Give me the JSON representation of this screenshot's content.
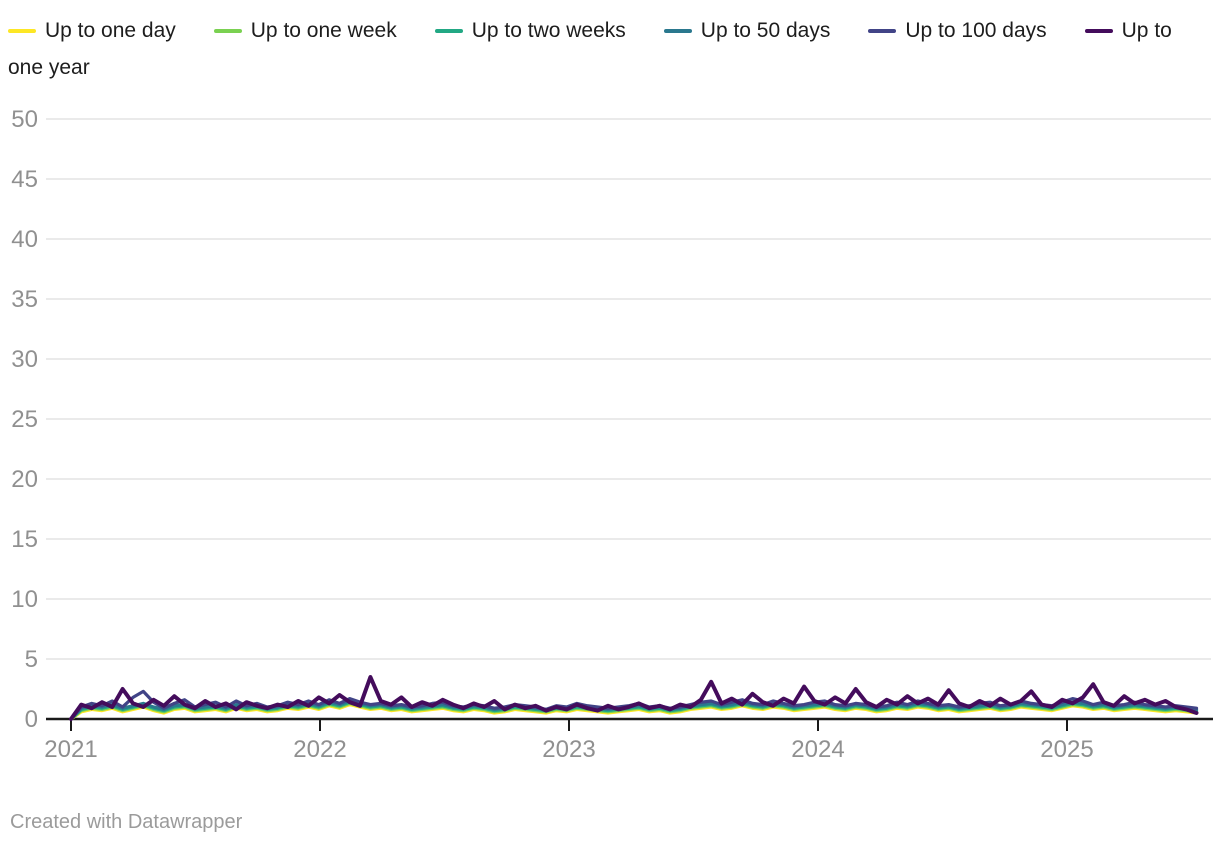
{
  "footer": {
    "credit": "Created with Datawrapper"
  },
  "colors": {
    "axis_label": "#909090",
    "gridline": "#e3e3e3",
    "baseline": "#1a1a1a",
    "legend_text": "#1d1d1d",
    "background": "#ffffff"
  },
  "chart_data": {
    "type": "line",
    "title": "",
    "xlabel": "",
    "ylabel": "",
    "x_range": [
      2021.0,
      2025.52
    ],
    "x_ticks": [
      2021,
      2022,
      2023,
      2024,
      2025
    ],
    "y_ticks": [
      0,
      5,
      10,
      15,
      20,
      25,
      30,
      35,
      40,
      45,
      50
    ],
    "ylim": [
      0,
      50
    ],
    "grid": true,
    "legend_position": "top",
    "series": [
      {
        "label": "Up to one day",
        "color": "#fde725",
        "values": [
          0,
          0.6,
          0.8,
          0.7,
          0.9,
          0.6,
          0.8,
          1.0,
          0.7,
          0.5,
          0.8,
          0.9,
          0.6,
          0.7,
          0.8,
          0.6,
          0.9,
          0.7,
          0.8,
          0.6,
          0.7,
          0.9,
          0.8,
          1.0,
          0.8,
          1.1,
          0.9,
          1.2,
          1.0,
          0.8,
          0.9,
          0.7,
          0.8,
          0.6,
          0.7,
          0.8,
          0.9,
          0.7,
          0.6,
          0.8,
          0.7,
          0.5,
          0.6,
          0.8,
          0.7,
          0.6,
          0.5,
          0.7,
          0.6,
          0.8,
          0.7,
          0.6,
          0.5,
          0.6,
          0.7,
          0.8,
          0.6,
          0.7,
          0.5,
          0.6,
          0.8,
          0.9,
          1.0,
          0.8,
          0.9,
          1.1,
          0.9,
          0.8,
          1.0,
          0.9,
          0.7,
          0.8,
          0.9,
          1.0,
          0.8,
          0.7,
          0.9,
          0.8,
          0.6,
          0.7,
          0.9,
          0.8,
          1.0,
          0.9,
          0.7,
          0.8,
          0.6,
          0.7,
          0.8,
          0.9,
          0.7,
          0.8,
          1.0,
          0.9,
          0.8,
          0.7,
          0.9,
          1.1,
          1.0,
          0.8,
          0.9,
          0.7,
          0.8,
          0.9,
          0.8,
          0.7,
          0.6,
          0.7,
          0.6,
          0.5
        ]
      },
      {
        "label": "Up to one week",
        "color": "#7ad151",
        "values": [
          0,
          0.7,
          0.9,
          0.8,
          1.0,
          0.7,
          0.9,
          1.1,
          0.8,
          0.6,
          0.9,
          1.0,
          0.7,
          0.8,
          0.9,
          0.7,
          1.0,
          0.8,
          0.9,
          0.7,
          0.8,
          1.0,
          0.9,
          1.1,
          0.9,
          1.2,
          1.0,
          1.3,
          1.1,
          0.9,
          1.0,
          0.8,
          0.9,
          0.7,
          0.8,
          0.9,
          1.0,
          0.8,
          0.7,
          0.9,
          0.8,
          0.6,
          0.7,
          0.9,
          0.8,
          0.7,
          0.6,
          0.8,
          0.7,
          0.9,
          0.8,
          0.7,
          0.6,
          0.7,
          0.8,
          0.9,
          0.7,
          0.8,
          0.6,
          0.7,
          0.9,
          1.0,
          1.1,
          0.9,
          1.0,
          1.2,
          1.0,
          0.9,
          1.1,
          1.0,
          0.8,
          0.9,
          1.0,
          1.1,
          0.9,
          0.8,
          1.0,
          0.9,
          0.7,
          0.8,
          1.0,
          0.9,
          1.1,
          1.0,
          0.8,
          0.9,
          0.7,
          0.8,
          0.9,
          1.0,
          0.8,
          0.9,
          1.1,
          1.0,
          0.9,
          0.8,
          1.0,
          1.2,
          1.1,
          0.9,
          1.0,
          0.8,
          0.9,
          1.0,
          0.9,
          0.8,
          0.7,
          0.8,
          0.7,
          0.6
        ]
      },
      {
        "label": "Up to two weeks",
        "color": "#22a884",
        "values": [
          0,
          0.8,
          1.0,
          0.9,
          1.1,
          0.8,
          1.0,
          1.2,
          0.9,
          0.7,
          1.0,
          1.1,
          0.8,
          0.9,
          1.0,
          0.8,
          1.1,
          0.9,
          1.0,
          0.8,
          0.9,
          1.1,
          1.0,
          1.2,
          1.0,
          1.3,
          1.1,
          1.4,
          1.2,
          1.0,
          1.1,
          0.9,
          1.0,
          0.8,
          0.9,
          1.0,
          1.1,
          0.9,
          0.8,
          1.0,
          0.9,
          0.7,
          0.8,
          1.0,
          0.9,
          0.8,
          0.7,
          0.9,
          0.8,
          1.0,
          0.9,
          0.8,
          0.7,
          0.8,
          0.9,
          1.0,
          0.8,
          0.9,
          0.7,
          0.8,
          1.0,
          1.1,
          1.2,
          1.0,
          1.1,
          1.3,
          1.1,
          1.0,
          1.2,
          1.1,
          0.9,
          1.0,
          1.1,
          1.2,
          1.0,
          0.9,
          1.1,
          1.0,
          0.8,
          0.9,
          1.1,
          1.0,
          1.2,
          1.1,
          0.9,
          1.0,
          0.8,
          0.9,
          1.0,
          1.1,
          0.9,
          1.0,
          1.2,
          1.1,
          1.0,
          0.9,
          1.1,
          1.3,
          1.2,
          1.0,
          1.1,
          0.9,
          1.0,
          1.1,
          1.0,
          0.9,
          0.8,
          0.9,
          0.8,
          0.7
        ]
      },
      {
        "label": "Up to 50 days",
        "color": "#2a788e",
        "values": [
          0,
          0.9,
          1.1,
          1.0,
          1.2,
          0.9,
          1.1,
          1.3,
          1.0,
          0.8,
          1.1,
          1.2,
          0.9,
          1.0,
          1.1,
          0.9,
          1.2,
          1.0,
          1.1,
          0.9,
          1.0,
          1.2,
          1.1,
          1.3,
          1.1,
          1.4,
          1.2,
          1.5,
          1.3,
          1.1,
          1.2,
          1.0,
          1.1,
          0.9,
          1.0,
          1.1,
          1.2,
          1.0,
          0.9,
          1.1,
          1.0,
          0.8,
          0.9,
          1.1,
          1.0,
          0.9,
          0.8,
          1.0,
          0.9,
          1.1,
          1.0,
          0.9,
          0.8,
          0.9,
          1.0,
          1.1,
          0.9,
          1.0,
          0.8,
          0.9,
          1.1,
          1.2,
          1.3,
          1.1,
          1.2,
          1.4,
          1.2,
          1.1,
          1.3,
          1.2,
          1.0,
          1.1,
          1.2,
          1.3,
          1.1,
          1.0,
          1.2,
          1.1,
          0.9,
          1.0,
          1.2,
          1.1,
          1.3,
          1.2,
          1.0,
          1.1,
          0.9,
          1.0,
          1.1,
          1.2,
          1.0,
          1.1,
          1.3,
          1.2,
          1.1,
          1.0,
          1.2,
          1.4,
          1.3,
          1.1,
          1.2,
          1.0,
          1.1,
          1.2,
          1.1,
          1.0,
          0.9,
          1.0,
          0.9,
          0.8
        ]
      },
      {
        "label": "Up to 100 days",
        "color": "#414487",
        "values": [
          0,
          1.0,
          1.3,
          1.1,
          1.5,
          1.0,
          1.8,
          2.3,
          1.4,
          0.9,
          1.3,
          1.6,
          1.0,
          1.2,
          1.4,
          1.0,
          1.5,
          1.1,
          1.3,
          1.0,
          1.1,
          1.4,
          1.2,
          1.5,
          1.2,
          1.6,
          1.3,
          1.7,
          1.4,
          1.2,
          1.3,
          1.1,
          1.2,
          1.0,
          1.1,
          1.3,
          1.4,
          1.1,
          1.0,
          1.2,
          1.1,
          0.9,
          1.0,
          1.2,
          1.1,
          1.0,
          0.8,
          1.1,
          1.0,
          1.3,
          1.1,
          1.0,
          0.9,
          1.0,
          1.1,
          1.3,
          1.0,
          1.1,
          0.9,
          1.0,
          1.2,
          1.4,
          1.5,
          1.2,
          1.4,
          1.6,
          1.3,
          1.2,
          1.5,
          1.3,
          1.1,
          1.2,
          1.4,
          1.5,
          1.2,
          1.1,
          1.3,
          1.2,
          1.0,
          1.1,
          1.4,
          1.2,
          1.5,
          1.3,
          1.1,
          1.2,
          1.0,
          1.1,
          1.3,
          1.4,
          1.1,
          1.2,
          1.5,
          1.3,
          1.2,
          1.1,
          1.4,
          1.7,
          1.5,
          1.2,
          1.4,
          1.1,
          1.2,
          1.4,
          1.2,
          1.1,
          1.0,
          1.1,
          1.0,
          0.9
        ]
      },
      {
        "label": "Up to one year",
        "color": "#440c5c",
        "values": [
          0,
          1.2,
          0.9,
          1.4,
          1.0,
          2.5,
          1.3,
          1.0,
          1.6,
          1.1,
          1.9,
          1.2,
          0.9,
          1.5,
          1.0,
          1.3,
          0.8,
          1.4,
          1.1,
          0.9,
          1.2,
          1.0,
          1.5,
          1.1,
          1.8,
          1.3,
          2.0,
          1.4,
          1.1,
          3.5,
          1.5,
          1.2,
          1.8,
          1.0,
          1.4,
          1.1,
          1.6,
          1.2,
          0.9,
          1.3,
          1.0,
          1.5,
          0.8,
          1.2,
          0.9,
          1.1,
          0.7,
          1.0,
          0.8,
          1.2,
          0.9,
          0.7,
          1.1,
          0.8,
          1.0,
          1.3,
          0.9,
          1.1,
          0.8,
          1.2,
          1.0,
          1.6,
          3.1,
          1.3,
          1.7,
          1.2,
          2.1,
          1.4,
          1.1,
          1.7,
          1.3,
          2.7,
          1.5,
          1.2,
          1.8,
          1.3,
          2.5,
          1.4,
          1.0,
          1.6,
          1.2,
          1.9,
          1.3,
          1.7,
          1.2,
          2.4,
          1.3,
          1.0,
          1.5,
          1.1,
          1.7,
          1.2,
          1.5,
          2.3,
          1.2,
          1.0,
          1.6,
          1.3,
          1.8,
          2.9,
          1.4,
          1.1,
          1.9,
          1.3,
          1.6,
          1.2,
          1.5,
          1.0,
          0.8,
          0.5
        ]
      }
    ]
  }
}
